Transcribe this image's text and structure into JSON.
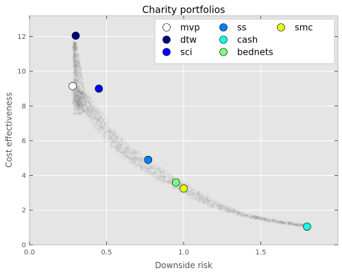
{
  "chart_data": {
    "type": "scatter",
    "title": "Charity portfolios",
    "xlabel": "Downside risk",
    "ylabel": "Cost effectiveness",
    "xlim": [
      0.0,
      2.0
    ],
    "ylim": [
      0,
      13.2
    ],
    "xticks": [
      {
        "value": 0.0,
        "label": "0.0"
      },
      {
        "value": 0.5,
        "label": "0.5"
      },
      {
        "value": 1.0,
        "label": "1.0"
      },
      {
        "value": 1.5,
        "label": "1.5"
      }
    ],
    "yticks": [
      {
        "value": 0,
        "label": "0"
      },
      {
        "value": 2,
        "label": "2"
      },
      {
        "value": 4,
        "label": "4"
      },
      {
        "value": 6,
        "label": "6"
      },
      {
        "value": 8,
        "label": "8"
      },
      {
        "value": 10,
        "label": "10"
      },
      {
        "value": 12,
        "label": "12"
      }
    ],
    "grid": true,
    "legend_position": "top-right",
    "background_color": "#e5e5e5",
    "cloud_color": "#7a7a7a",
    "cloud_frontier": [
      {
        "x": 0.28,
        "y": 9.3
      },
      {
        "x": 0.29,
        "y": 10.5
      },
      {
        "x": 0.31,
        "y": 11.6
      },
      {
        "x": 0.38,
        "y": 8.0
      },
      {
        "x": 0.5,
        "y": 6.5
      },
      {
        "x": 0.62,
        "y": 5.4
      },
      {
        "x": 0.75,
        "y": 4.6
      },
      {
        "x": 0.9,
        "y": 3.8
      },
      {
        "x": 1.05,
        "y": 3.0
      },
      {
        "x": 1.2,
        "y": 2.3
      },
      {
        "x": 1.4,
        "y": 1.7
      },
      {
        "x": 1.6,
        "y": 1.35
      },
      {
        "x": 1.78,
        "y": 1.1
      }
    ],
    "series": [
      {
        "name": "mvp",
        "color": "#ffffff",
        "points": [
          {
            "x": 0.28,
            "y": 9.15
          }
        ]
      },
      {
        "name": "dtw",
        "color": "#00007f",
        "points": [
          {
            "x": 0.3,
            "y": 12.05
          }
        ]
      },
      {
        "name": "sci",
        "color": "#0000ff",
        "points": [
          {
            "x": 0.45,
            "y": 9.0
          }
        ]
      },
      {
        "name": "ss",
        "color": "#0080ff",
        "points": [
          {
            "x": 0.77,
            "y": 4.9
          }
        ]
      },
      {
        "name": "cash",
        "color": "#15ffe1",
        "points": [
          {
            "x": 1.8,
            "y": 1.05
          }
        ]
      },
      {
        "name": "bednets",
        "color": "#7dff7a",
        "points": [
          {
            "x": 0.95,
            "y": 3.6
          }
        ]
      },
      {
        "name": "smc",
        "color": "#e4ff12",
        "points": [
          {
            "x": 1.0,
            "y": 3.25
          }
        ]
      }
    ]
  }
}
